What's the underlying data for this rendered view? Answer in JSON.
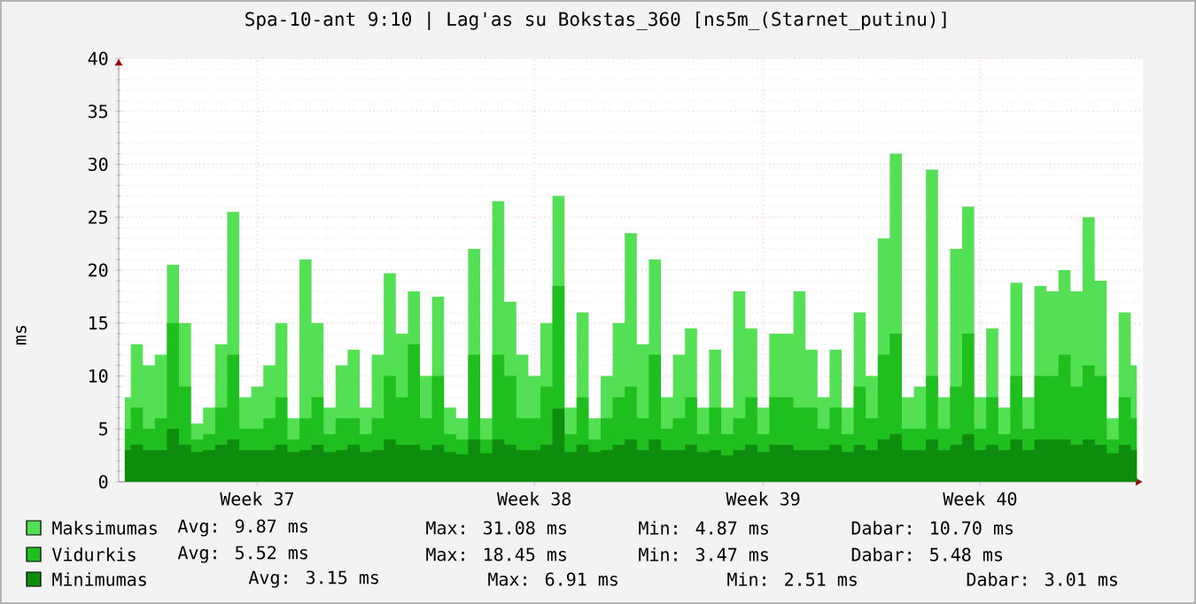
{
  "chart_data": {
    "type": "area",
    "title": "Spa-10-ant 9:10 | Lag'as su Bokstas_360 [ns5m_(Starnet_putinu)]",
    "ylabel": "ms",
    "categories": [
      null,
      null,
      null,
      null,
      null,
      null,
      null,
      null,
      null,
      null,
      null,
      "Week 37",
      null,
      null,
      null,
      null,
      null,
      null,
      null,
      null,
      null,
      null,
      null,
      null,
      null,
      null,
      null,
      null,
      null,
      null,
      null,
      null,
      null,
      null,
      "Week 38",
      null,
      null,
      null,
      null,
      null,
      null,
      null,
      null,
      null,
      null,
      null,
      null,
      null,
      null,
      null,
      null,
      null,
      null,
      "Week 39",
      null,
      null,
      null,
      null,
      null,
      null,
      null,
      null,
      null,
      null,
      null,
      null,
      null,
      null,
      null,
      null,
      null,
      "Week 40",
      null,
      null,
      null,
      null,
      null,
      null,
      null,
      null,
      null,
      null,
      null,
      null,
      null
    ],
    "series": [
      {
        "name": "Maksimumas",
        "color": "#54e054",
        "values": [
          8,
          13,
          11,
          12,
          20.5,
          15,
          5.5,
          7,
          13,
          25.5,
          8,
          9,
          11,
          15,
          6,
          21,
          15,
          7,
          11,
          12.5,
          7,
          12,
          19.7,
          14,
          18,
          10,
          17.5,
          7,
          6,
          22,
          6,
          26.5,
          17,
          12,
          10,
          15,
          27,
          7,
          16,
          6,
          10,
          15,
          23.5,
          13,
          21,
          8,
          12,
          14.5,
          7,
          12.5,
          7,
          18,
          14.5,
          7,
          14,
          14,
          18,
          12.5,
          8,
          12.5,
          7,
          16,
          10,
          23,
          31,
          8,
          9,
          29.5,
          8,
          22,
          26,
          8,
          14.5,
          7,
          18.8,
          8,
          18.5,
          18,
          20,
          18,
          25,
          19,
          6,
          16,
          11
        ]
      },
      {
        "name": "Vidurkis",
        "color": "#1fbf1f",
        "values": [
          5,
          7,
          5,
          6,
          15,
          9,
          4,
          4.5,
          7,
          12,
          5,
          5,
          6,
          8,
          4,
          6,
          8,
          4.5,
          6,
          6,
          4.5,
          6,
          10,
          8,
          13,
          6,
          10,
          4.5,
          4,
          12,
          4,
          12,
          10,
          6,
          6,
          9,
          18.5,
          4.5,
          8,
          4,
          6,
          8,
          9,
          6,
          12,
          5,
          6,
          8,
          4.5,
          7,
          4.5,
          6,
          8,
          4.5,
          8,
          8,
          7,
          7,
          5,
          7,
          4.5,
          9,
          6,
          12,
          14,
          5,
          5,
          10,
          5,
          9,
          14,
          5,
          8,
          4.5,
          10,
          5,
          10,
          10,
          12,
          9,
          11,
          10,
          4,
          8,
          6
        ]
      },
      {
        "name": "Minimumas",
        "color": "#0e8c0e",
        "values": [
          3,
          3.5,
          3,
          3,
          5,
          3.5,
          2.8,
          3,
          3.5,
          4,
          3,
          3,
          3,
          3.5,
          2.8,
          3,
          3.5,
          2.8,
          3,
          3.5,
          2.8,
          3,
          4,
          3.5,
          3.5,
          3,
          3.5,
          2.8,
          2.6,
          4,
          2.7,
          4,
          3.5,
          3,
          3,
          3.5,
          6.9,
          2.8,
          3.5,
          2.8,
          3,
          3.5,
          4,
          3,
          4,
          3,
          3,
          3.5,
          2.8,
          3,
          2.5,
          3,
          3.5,
          2.8,
          3.5,
          3.5,
          3,
          3,
          3,
          3.5,
          2.8,
          3.5,
          3,
          4,
          4.5,
          3,
          3,
          4,
          3,
          3.5,
          4.5,
          3,
          3.5,
          3,
          4,
          3,
          4,
          4,
          4,
          3.5,
          4,
          3.5,
          2.7,
          3.5,
          3
        ]
      }
    ],
    "ylim": [
      0,
      40
    ],
    "yticks": [
      0,
      5,
      10,
      15,
      20,
      25,
      30,
      35,
      40
    ],
    "grid": true,
    "legend": "bottom",
    "annotations": [
      "Avg: 9.87 ms",
      "Max: 31.08 ms",
      "Min: 4.87 ms",
      "Dabar: 10.70 ms",
      "Avg: 5.52 ms",
      "Max: 18.45 ms",
      "Min: 3.47 ms",
      "Dabar: 5.48 ms",
      "Avg: 3.15 ms",
      "Max: 6.91 ms",
      "Min: 2.51 ms",
      "Dabar: 3.01 ms"
    ]
  }
}
